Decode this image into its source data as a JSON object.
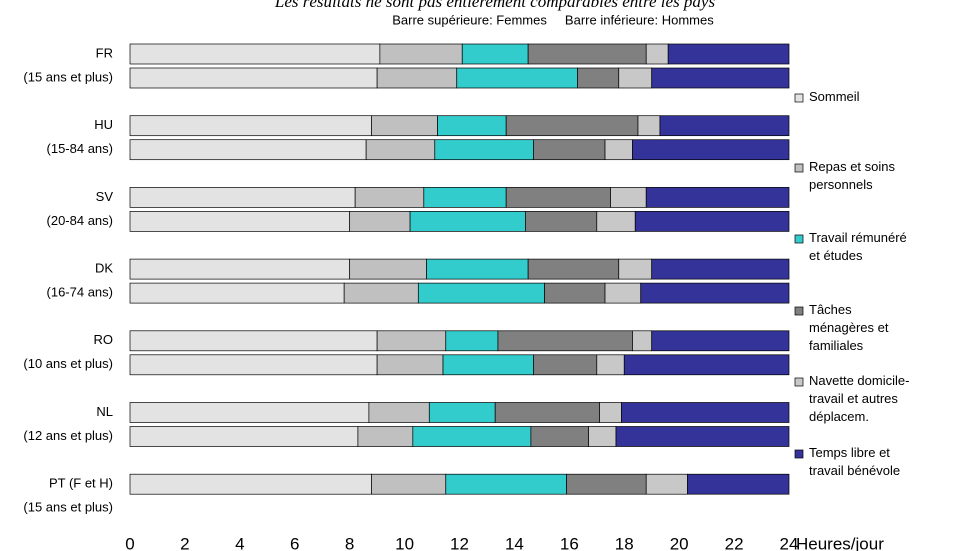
{
  "chart_data": {
    "type": "stacked-bar-horizontal",
    "title": "Les résultats ne sont pas entièrement comparables entre les pays",
    "subtitle": "Barre supérieure: Femmes     Barre inférieure: Hommes",
    "xlabel": "Heures/jour",
    "categories": [
      "FR",
      "(15 ans et plus)",
      "HU",
      "(15-84 ans)",
      "SV",
      "(20-84 ans)",
      "DK",
      "(16-74 ans)",
      "RO",
      "(10 ans et plus)",
      "NL",
      "(12 ans et plus)",
      "PT (F et H)",
      "(15 ans et plus)"
    ],
    "series": [
      {
        "name": "Sommeil",
        "color": "#e3e3e3",
        "values": [
          9.1,
          9.0,
          8.8,
          8.6,
          8.2,
          8.0,
          8.0,
          7.8,
          9.0,
          9.0,
          8.7,
          8.3,
          8.8,
          null
        ]
      },
      {
        "name": "Repas et soins\npersonnels",
        "color": "#c0c0c0",
        "values": [
          3.0,
          2.9,
          2.4,
          2.5,
          2.5,
          2.2,
          2.8,
          2.7,
          2.5,
          2.4,
          2.2,
          2.0,
          2.7,
          null
        ]
      },
      {
        "name": "Travail rémunéré\net études",
        "color": "#33cccc",
        "values": [
          2.4,
          4.4,
          2.5,
          3.6,
          3.0,
          4.2,
          3.7,
          4.6,
          1.9,
          3.3,
          2.4,
          4.3,
          4.4,
          null
        ]
      },
      {
        "name": "Tâches\nménagères et\nfamiliales",
        "color": "#808080",
        "values": [
          4.3,
          1.5,
          4.8,
          2.6,
          3.8,
          2.6,
          3.3,
          2.2,
          4.9,
          2.3,
          3.8,
          2.1,
          2.9,
          null
        ]
      },
      {
        "name": "Navette domicile-\ntravail et autres\ndéplacem.",
        "color": "#c8c8c8",
        "values": [
          0.8,
          1.2,
          0.8,
          1.0,
          1.3,
          1.4,
          1.2,
          1.3,
          0.7,
          1.0,
          0.8,
          1.0,
          1.5,
          null
        ]
      },
      {
        "name": "Temps libre et\ntravail bénévole",
        "color": "#333399",
        "values": [
          4.4,
          5.0,
          4.7,
          5.7,
          5.2,
          5.6,
          5.0,
          5.4,
          5.0,
          6.0,
          6.1,
          6.3,
          3.7,
          null
        ]
      }
    ],
    "xlim": [
      0,
      24
    ],
    "xticks": [
      0,
      2,
      4,
      6,
      8,
      10,
      12,
      14,
      16,
      18,
      20,
      22,
      24
    ],
    "grid": false,
    "legend": "right"
  }
}
